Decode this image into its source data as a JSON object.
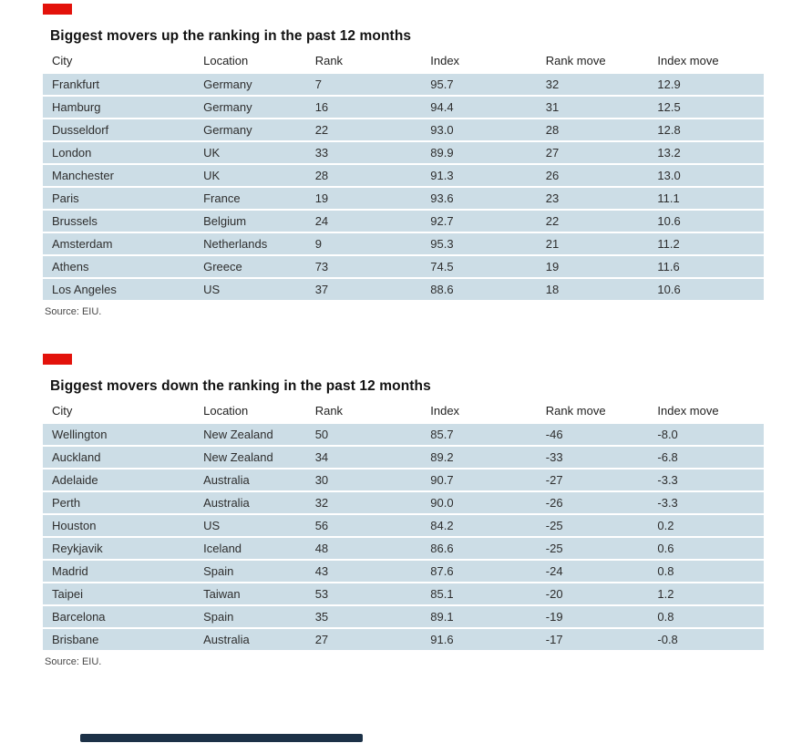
{
  "colors": {
    "accent_red": "#e3120b",
    "row_background": "#ccdde6",
    "navy_bar": "#1c3147"
  },
  "tables": [
    {
      "title": "Biggest movers up the ranking in the past 12 months",
      "columns": [
        "City",
        "Location",
        "Rank",
        "Index",
        "Rank move",
        "Index move"
      ],
      "rows": [
        [
          "Frankfurt",
          "Germany",
          "7",
          "95.7",
          "32",
          "12.9"
        ],
        [
          "Hamburg",
          "Germany",
          "16",
          "94.4",
          "31",
          "12.5"
        ],
        [
          "Dusseldorf",
          "Germany",
          "22",
          "93.0",
          "28",
          "12.8"
        ],
        [
          "London",
          "UK",
          "33",
          "89.9",
          "27",
          "13.2"
        ],
        [
          "Manchester",
          "UK",
          "28",
          "91.3",
          "26",
          "13.0"
        ],
        [
          "Paris",
          "France",
          "19",
          "93.6",
          "23",
          "11.1"
        ],
        [
          "Brussels",
          "Belgium",
          "24",
          "92.7",
          "22",
          "10.6"
        ],
        [
          "Amsterdam",
          "Netherlands",
          "9",
          "95.3",
          "21",
          "11.2"
        ],
        [
          "Athens",
          "Greece",
          "73",
          "74.5",
          "19",
          "11.6"
        ],
        [
          "Los Angeles",
          "US",
          "37",
          "88.6",
          "18",
          "10.6"
        ]
      ],
      "source": "Source: EIU."
    },
    {
      "title": "Biggest movers down the ranking in the past 12 months",
      "columns": [
        "City",
        "Location",
        "Rank",
        "Index",
        "Rank move",
        "Index move"
      ],
      "rows": [
        [
          "Wellington",
          "New Zealand",
          "50",
          "85.7",
          "-46",
          "-8.0"
        ],
        [
          "Auckland",
          "New Zealand",
          "34",
          "89.2",
          "-33",
          "-6.8"
        ],
        [
          "Adelaide",
          "Australia",
          "30",
          "90.7",
          "-27",
          "-3.3"
        ],
        [
          "Perth",
          "Australia",
          "32",
          "90.0",
          "-26",
          "-3.3"
        ],
        [
          "Houston",
          "US",
          "56",
          "84.2",
          "-25",
          "0.2"
        ],
        [
          "Reykjavik",
          "Iceland",
          "48",
          "86.6",
          "-25",
          "0.6"
        ],
        [
          "Madrid",
          "Spain",
          "43",
          "87.6",
          "-24",
          "0.8"
        ],
        [
          "Taipei",
          "Taiwan",
          "53",
          "85.1",
          "-20",
          "1.2"
        ],
        [
          "Barcelona",
          "Spain",
          "35",
          "89.1",
          "-19",
          "0.8"
        ],
        [
          "Brisbane",
          "Australia",
          "27",
          "91.6",
          "-17",
          "-0.8"
        ]
      ],
      "source": "Source: EIU."
    }
  ]
}
